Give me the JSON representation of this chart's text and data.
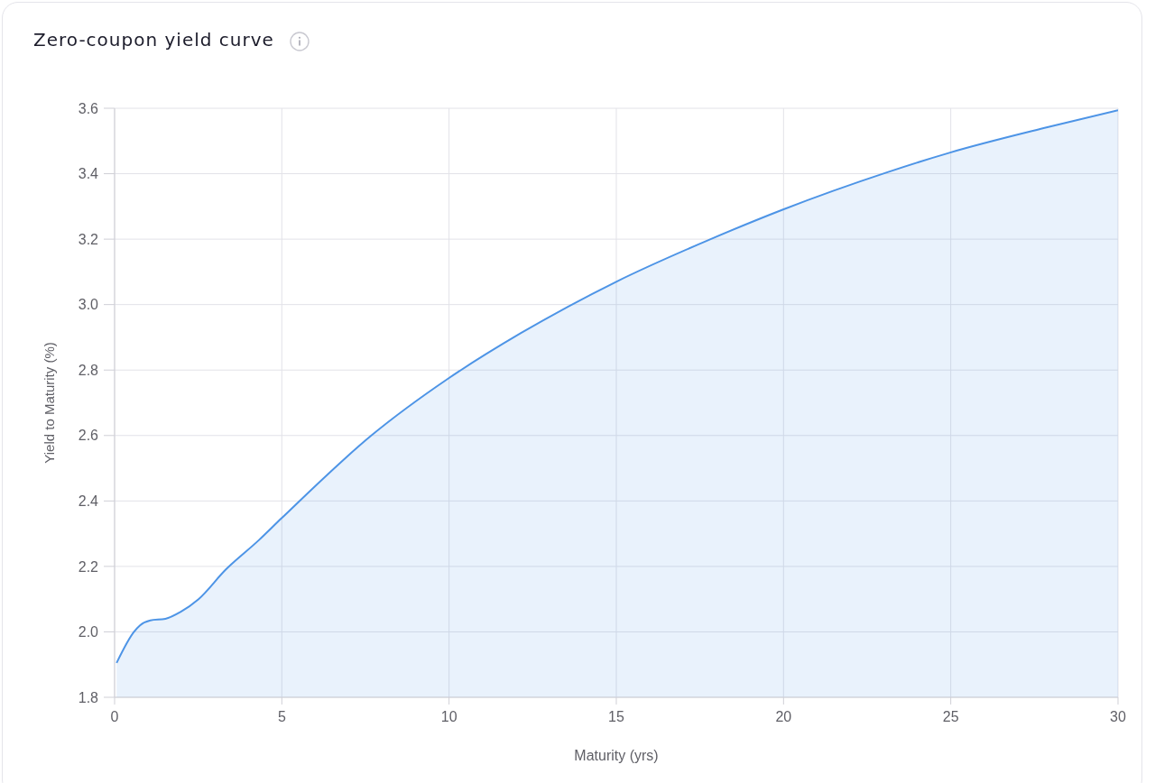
{
  "chart_data": {
    "type": "area",
    "title": "Zero-coupon yield curve",
    "xlabel": "Maturity (yrs)",
    "ylabel": "Yield to Maturity (%)",
    "x": [
      0.06,
      0.58,
      0.76,
      1.07,
      1.52,
      1.97,
      2.51,
      3.32,
      4.31,
      4.99,
      7.7,
      9.96,
      12.15,
      15.0,
      17.82,
      19.97,
      23.09,
      24.96,
      27.89,
      30
    ],
    "values": [
      1.905,
      2.0,
      2.02,
      2.035,
      2.04,
      2.061,
      2.1,
      2.19,
      2.28,
      2.347,
      2.602,
      2.773,
      2.913,
      3.07,
      3.2,
      3.29,
      3.404,
      3.464,
      3.542,
      3.594
    ],
    "color": "#4d94e6",
    "xlim": [
      0,
      30
    ],
    "ylim": [
      1.8,
      3.6
    ],
    "xticks": [
      0,
      5,
      10,
      15,
      20,
      25,
      30
    ],
    "yticks": [
      1.8,
      {
        "value": 2,
        "label": "2.0"
      },
      2.2,
      2.4,
      2.6,
      2.8,
      {
        "value": 3,
        "label": "3.0"
      },
      3.2,
      3.4,
      3.6
    ],
    "grid": true
  }
}
